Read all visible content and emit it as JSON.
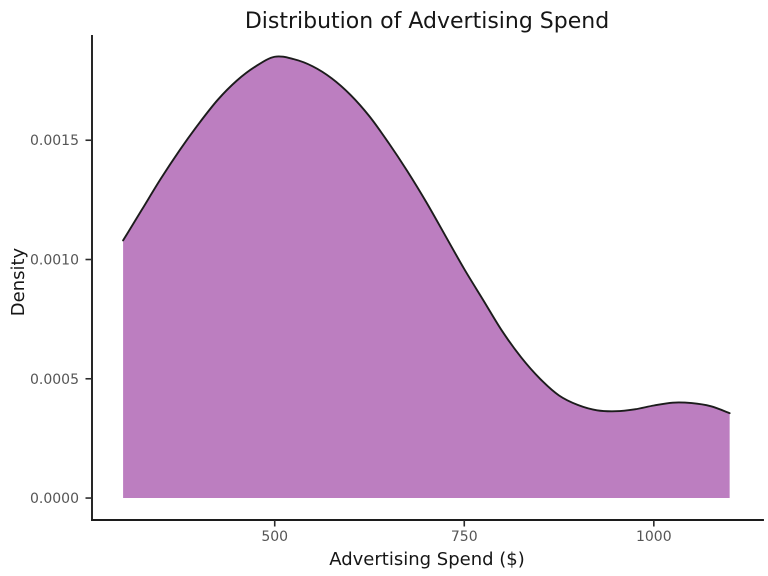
{
  "chart_data": {
    "type": "area",
    "subtype": "kde-density-plot",
    "title": "Distribution of Advertising Spend",
    "xlabel": "Advertising Spend ($)",
    "ylabel": "Density",
    "xlim": [
      259,
      1144
    ],
    "ylim": [
      -9.2e-05,
      0.001937
    ],
    "grid": false,
    "legend": false,
    "x_ticks": {
      "values": [
        500,
        750,
        1000
      ],
      "labels": [
        "500",
        "750",
        "1000"
      ]
    },
    "y_ticks": {
      "values": [
        0.0,
        0.0005,
        0.001,
        0.0015
      ],
      "labels": [
        "0.0000",
        "0.0005",
        "0.0010",
        "0.0015"
      ]
    },
    "data_range": [
      300,
      1100
    ],
    "colors": {
      "fill": "#BC7EC0",
      "line": "#1c1c1c",
      "tick_label": "#555555",
      "text": "#161616",
      "background": "#ffffff"
    },
    "curve": {
      "x": [
        300,
        325,
        350,
        375,
        400,
        425,
        450,
        475,
        500,
        525,
        550,
        575,
        600,
        625,
        650,
        675,
        700,
        725,
        750,
        775,
        800,
        825,
        850,
        875,
        900,
        925,
        950,
        975,
        1000,
        1025,
        1050,
        1075,
        1100
      ],
      "density": [
        0.00108,
        0.00121,
        0.00134,
        0.00146,
        0.00157,
        0.00167,
        0.00175,
        0.00181,
        0.00185,
        0.00184,
        0.00181,
        0.00176,
        0.00169,
        0.0016,
        0.00149,
        0.00137,
        0.00124,
        0.0011,
        0.00096,
        0.00083,
        0.0007,
        0.00059,
        0.0005,
        0.00043,
        0.00039,
        0.000368,
        0.000364,
        0.000372,
        0.000388,
        0.0004,
        0.000398,
        0.000385,
        0.000356
      ]
    }
  }
}
